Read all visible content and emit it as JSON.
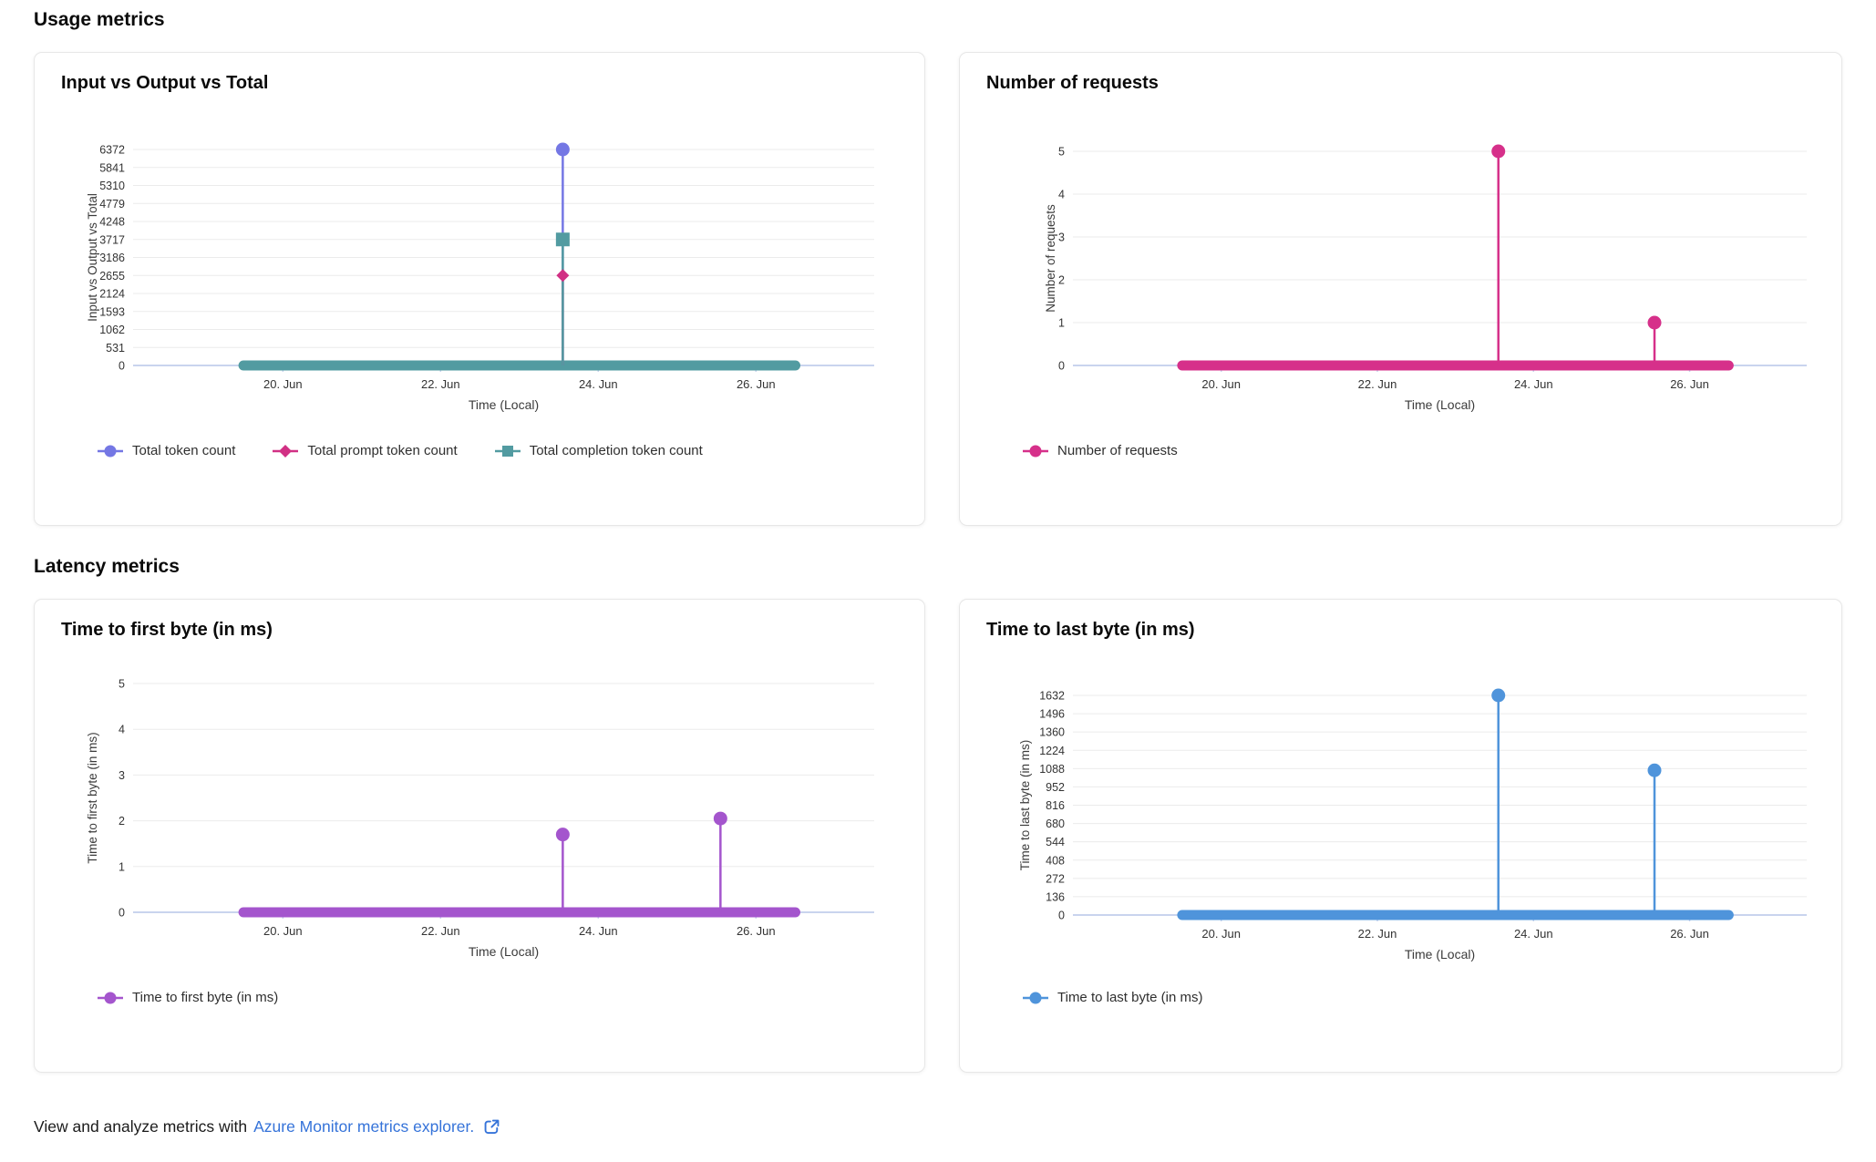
{
  "sections": {
    "usage": "Usage metrics",
    "latency": "Latency metrics"
  },
  "footer": {
    "text": "View and analyze metrics with",
    "link_text": "Azure Monitor metrics explorer.",
    "external_link_icon": "open-in-new-window"
  },
  "colors": {
    "link": "#3573d9",
    "axis_line": "#c9d4ee",
    "gridline": "#ebebeb",
    "tick_label": "#333333",
    "axis_title": "#3b3b3b",
    "total_tokens": "#7477e4",
    "prompt_tokens": "#d13084",
    "completion_tokens": "#529ba1",
    "requests": "#d6308a",
    "ttfb": "#a455cd",
    "ttlb": "#4f94db"
  },
  "chart_data": [
    {
      "type": "line",
      "title": "Input vs Output vs Total",
      "ylabel": "Input vs Output vs Total",
      "xlabel": "Time (Local)",
      "ylim": [
        0,
        6372
      ],
      "y_ticks": [
        6372,
        5841,
        5310,
        4779,
        4248,
        3717,
        3186,
        2655,
        2124,
        1593,
        1062,
        531,
        0
      ],
      "x_tick_labels": [
        "20. Jun",
        "22. Jun",
        "24. Jun",
        "26. Jun"
      ],
      "x_tick_days": [
        20,
        22,
        24,
        26
      ],
      "xlim_days": [
        18.1,
        27.5
      ],
      "grid": true,
      "legend_position": "bottom",
      "baseline": {
        "from_day": 19.5,
        "to_day": 26.5,
        "value": 0
      },
      "series": [
        {
          "name": "Total token count",
          "color": "#7477e4",
          "marker": "circle",
          "spikes": [
            {
              "day": 23.55,
              "value": 6372
            }
          ]
        },
        {
          "name": "Total prompt token count",
          "color": "#d13084",
          "marker": "diamond",
          "spikes": [
            {
              "day": 23.55,
              "value": 2655
            }
          ]
        },
        {
          "name": "Total completion token count",
          "color": "#529ba1",
          "marker": "square",
          "spikes": [
            {
              "day": 23.55,
              "value": 3717
            }
          ]
        }
      ]
    },
    {
      "type": "line",
      "title": "Number of requests",
      "ylabel": "Number of requests",
      "xlabel": "Time (Local)",
      "ylim": [
        0,
        5
      ],
      "y_ticks": [
        5,
        4,
        3,
        2,
        1,
        0
      ],
      "x_tick_labels": [
        "20. Jun",
        "22. Jun",
        "24. Jun",
        "26. Jun"
      ],
      "x_tick_days": [
        20,
        22,
        24,
        26
      ],
      "xlim_days": [
        18.1,
        27.5
      ],
      "grid": true,
      "legend_position": "bottom",
      "baseline": {
        "from_day": 19.5,
        "to_day": 26.5,
        "value": 0
      },
      "series": [
        {
          "name": "Number of requests",
          "color": "#d6308a",
          "marker": "circle",
          "spikes": [
            {
              "day": 23.55,
              "value": 5
            },
            {
              "day": 25.55,
              "value": 1
            }
          ]
        }
      ]
    },
    {
      "type": "line",
      "title": "Time to first byte (in ms)",
      "ylabel": "Time to first byte (in ms)",
      "xlabel": "Time (Local)",
      "ylim": [
        0,
        5
      ],
      "y_ticks": [
        5,
        4,
        3,
        2,
        1,
        0
      ],
      "x_tick_labels": [
        "20. Jun",
        "22. Jun",
        "24. Jun",
        "26. Jun"
      ],
      "x_tick_days": [
        20,
        22,
        24,
        26
      ],
      "xlim_days": [
        18.1,
        27.5
      ],
      "grid": true,
      "legend_position": "bottom",
      "baseline": {
        "from_day": 19.5,
        "to_day": 26.5,
        "value": 0
      },
      "series": [
        {
          "name": "Time to first byte (in ms)",
          "color": "#a455cd",
          "marker": "circle",
          "spikes": [
            {
              "day": 23.55,
              "value": 1.7
            },
            {
              "day": 25.55,
              "value": 2.05
            }
          ]
        }
      ]
    },
    {
      "type": "line",
      "title": "Time to last byte (in ms)",
      "ylabel": "Time to last byte (in ms)",
      "xlabel": "Time (Local)",
      "ylim": [
        0,
        1632
      ],
      "y_ticks": [
        1632,
        1496,
        1360,
        1224,
        1088,
        952,
        816,
        680,
        544,
        408,
        272,
        136,
        0
      ],
      "x_tick_labels": [
        "20. Jun",
        "22. Jun",
        "24. Jun",
        "26. Jun"
      ],
      "x_tick_days": [
        20,
        22,
        24,
        26
      ],
      "xlim_days": [
        18.1,
        27.5
      ],
      "grid": true,
      "legend_position": "bottom",
      "baseline": {
        "from_day": 19.5,
        "to_day": 26.5,
        "value": 0
      },
      "series": [
        {
          "name": "Time to last byte (in ms)",
          "color": "#4f94db",
          "marker": "circle",
          "spikes": [
            {
              "day": 23.55,
              "value": 1632
            },
            {
              "day": 25.55,
              "value": 1075
            }
          ]
        }
      ]
    }
  ]
}
